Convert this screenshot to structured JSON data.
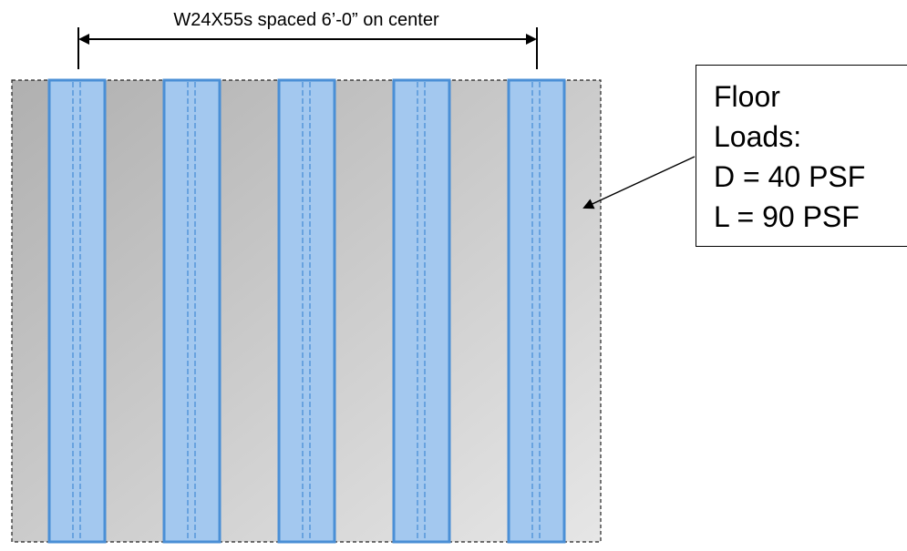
{
  "dimension": {
    "label": "W24X55s spaced 6’-0” on center"
  },
  "beams": {
    "count": 5,
    "fill_color": "#a3c8ef",
    "outline_color": "#4a8fd6"
  },
  "slab": {
    "gradient_start": "#b0b0b0",
    "gradient_end": "#e6e6e6"
  },
  "load_box": {
    "lines": [
      "Floor",
      "Loads:",
      "D = 40 PSF",
      "L = 90 PSF"
    ]
  }
}
